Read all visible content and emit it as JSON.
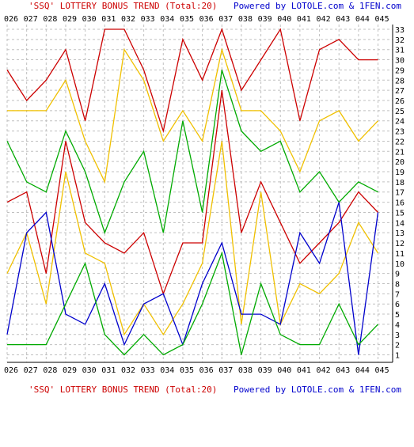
{
  "title_top": "'SSQ' LOTTERY BONUS TREND (Total:20)",
  "powered_top": "Powered by LOTOLE.com & 1FEN.com",
  "title_bottom": "'SSQ' LOTTERY BONUS TREND (Total:20)",
  "powered_bottom": "Powered by LOTOLE.com & 1FEN.com",
  "colors": {
    "title": "#cc0000",
    "powered": "#0000cc",
    "grid": "#c0c0c0",
    "axis": "#000000",
    "background": "#ffffff"
  },
  "chart_data": {
    "type": "line",
    "title": "'SSQ' LOTTERY BONUS TREND (Total:20)",
    "xlabel": "",
    "ylabel": "",
    "categories": [
      "026",
      "027",
      "028",
      "029",
      "030",
      "031",
      "032",
      "033",
      "034",
      "035",
      "036",
      "037",
      "038",
      "039",
      "040",
      "041",
      "042",
      "043",
      "044",
      "045"
    ],
    "yticks": [
      1,
      2,
      3,
      4,
      5,
      6,
      7,
      8,
      9,
      10,
      11,
      12,
      13,
      14,
      15,
      16,
      17,
      18,
      19,
      20,
      21,
      22,
      23,
      24,
      25,
      26,
      27,
      28,
      29,
      30,
      31,
      32,
      33
    ],
    "ylim": [
      1,
      33
    ],
    "grid": true,
    "series": [
      {
        "color": "#cc0000",
        "values": [
          29,
          26,
          28,
          31,
          24,
          33,
          33,
          29,
          23,
          32,
          28,
          33,
          27,
          30,
          33,
          24,
          31,
          32,
          30,
          30
        ]
      },
      {
        "color": "#f0c000",
        "values": [
          25,
          25,
          25,
          28,
          22,
          18,
          31,
          28,
          22,
          25,
          22,
          31,
          25,
          25,
          23,
          19,
          24,
          25,
          22,
          24
        ]
      },
      {
        "color": "#00aa00",
        "values": [
          22,
          18,
          17,
          23,
          19,
          13,
          18,
          21,
          13,
          24,
          15,
          29,
          23,
          21,
          22,
          17,
          19,
          16,
          18,
          17
        ]
      },
      {
        "color": "#cc0000",
        "values": [
          16,
          17,
          9,
          22,
          14,
          12,
          11,
          13,
          7,
          12,
          12,
          27,
          13,
          18,
          14,
          10,
          12,
          14,
          17,
          15
        ]
      },
      {
        "color": "#f0c000",
        "values": [
          9,
          13,
          6,
          19,
          11,
          10,
          3,
          6,
          3,
          6,
          10,
          22,
          4,
          17,
          4,
          8,
          7,
          9,
          14,
          11
        ]
      },
      {
        "color": "#0000cc",
        "values": [
          3,
          13,
          15,
          5,
          4,
          8,
          2,
          6,
          7,
          2,
          8,
          12,
          5,
          5,
          4,
          13,
          10,
          16,
          1,
          15
        ]
      },
      {
        "color": "#00aa00",
        "values": [
          2,
          2,
          2,
          6,
          10,
          3,
          1,
          3,
          1,
          2,
          6,
          11,
          1,
          8,
          3,
          2,
          2,
          6,
          2,
          4
        ]
      }
    ]
  }
}
